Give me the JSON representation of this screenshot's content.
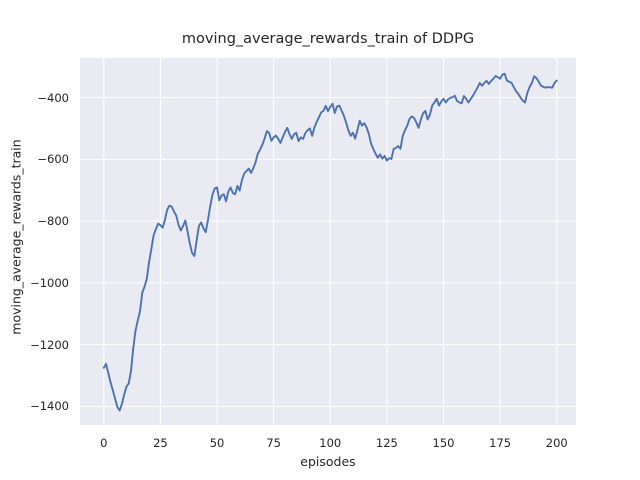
{
  "figure": {
    "background": "#ffffff",
    "plot_background": "#eaeaf2",
    "grid_color": "#ffffff",
    "text_color": "#262626",
    "line_color": "#4c72b0"
  },
  "chart_data": {
    "type": "line",
    "title": "moving_average_rewards_train of DDPG",
    "xlabel": "episodes",
    "ylabel": "moving_average_rewards_train",
    "legend": "none",
    "grid": true,
    "xlim": [
      -10.5,
      208.5
    ],
    "ylim": [
      -1460,
      -272
    ],
    "xticks": [
      0,
      25,
      50,
      75,
      100,
      125,
      150,
      175,
      200
    ],
    "xtick_labels": [
      "0",
      "25",
      "50",
      "75",
      "100",
      "125",
      "150",
      "175",
      "200"
    ],
    "yticks": [
      -400,
      -600,
      -800,
      -1000,
      -1200,
      -1400
    ],
    "ytick_labels": [
      "−400",
      "−600",
      "−800",
      "−1000",
      "−1200",
      "−1400"
    ],
    "series": [
      {
        "name": "moving_average_rewards_train",
        "color": "#4c72b0",
        "x_start": 0,
        "x_step": 1,
        "y": [
          -1275,
          -1262,
          -1292,
          -1322,
          -1348,
          -1375,
          -1402,
          -1413,
          -1392,
          -1362,
          -1336,
          -1326,
          -1286,
          -1212,
          -1155,
          -1122,
          -1092,
          -1032,
          -1012,
          -986,
          -932,
          -890,
          -846,
          -826,
          -808,
          -813,
          -821,
          -796,
          -763,
          -750,
          -753,
          -769,
          -782,
          -812,
          -830,
          -816,
          -798,
          -834,
          -873,
          -903,
          -913,
          -863,
          -816,
          -804,
          -823,
          -836,
          -796,
          -752,
          -714,
          -694,
          -691,
          -733,
          -717,
          -713,
          -736,
          -704,
          -691,
          -709,
          -713,
          -686,
          -701,
          -667,
          -646,
          -638,
          -630,
          -644,
          -629,
          -610,
          -582,
          -569,
          -553,
          -533,
          -509,
          -514,
          -540,
          -529,
          -523,
          -533,
          -547,
          -529,
          -512,
          -498,
          -518,
          -534,
          -519,
          -514,
          -541,
          -529,
          -534,
          -515,
          -506,
          -500,
          -524,
          -497,
          -479,
          -464,
          -448,
          -443,
          -427,
          -444,
          -430,
          -420,
          -450,
          -429,
          -426,
          -442,
          -459,
          -481,
          -506,
          -524,
          -514,
          -533,
          -506,
          -475,
          -491,
          -483,
          -496,
          -517,
          -549,
          -566,
          -582,
          -595,
          -584,
          -598,
          -589,
          -604,
          -596,
          -599,
          -566,
          -563,
          -557,
          -566,
          -524,
          -506,
          -491,
          -469,
          -461,
          -466,
          -481,
          -498,
          -471,
          -451,
          -443,
          -471,
          -456,
          -426,
          -416,
          -404,
          -426,
          -413,
          -404,
          -416,
          -406,
          -401,
          -399,
          -394,
          -411,
          -416,
          -419,
          -395,
          -404,
          -416,
          -405,
          -394,
          -381,
          -368,
          -353,
          -362,
          -353,
          -346,
          -356,
          -347,
          -339,
          -330,
          -334,
          -339,
          -326,
          -323,
          -345,
          -349,
          -352,
          -366,
          -379,
          -388,
          -400,
          -410,
          -416,
          -385,
          -366,
          -353,
          -331,
          -337,
          -348,
          -361,
          -365,
          -368,
          -366,
          -367,
          -368,
          -353,
          -345
        ]
      }
    ]
  }
}
